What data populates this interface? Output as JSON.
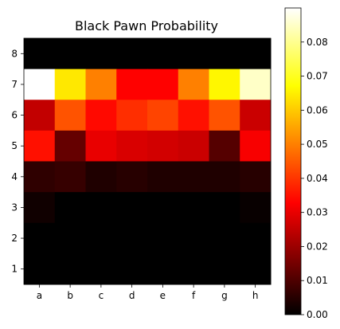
{
  "chart_data": {
    "type": "heatmap",
    "title": "Black Pawn Probability",
    "x_categories": [
      "a",
      "b",
      "c",
      "d",
      "e",
      "f",
      "g",
      "h"
    ],
    "y_categories": [
      "8",
      "7",
      "6",
      "5",
      "4",
      "3",
      "2",
      "1"
    ],
    "values": [
      [
        0.0,
        0.0,
        0.0,
        0.0,
        0.0,
        0.0,
        0.0,
        0.0
      ],
      [
        0.09,
        0.064,
        0.05,
        0.033,
        0.033,
        0.05,
        0.066,
        0.085
      ],
      [
        0.025,
        0.044,
        0.034,
        0.039,
        0.042,
        0.035,
        0.044,
        0.026
      ],
      [
        0.035,
        0.013,
        0.03,
        0.028,
        0.027,
        0.026,
        0.011,
        0.032
      ],
      [
        0.006,
        0.007,
        0.004,
        0.005,
        0.004,
        0.004,
        0.004,
        0.005
      ],
      [
        0.002,
        0.0,
        0.0,
        0.0,
        0.0,
        0.0,
        0.0,
        0.001
      ],
      [
        0.0,
        0.0,
        0.0,
        0.0,
        0.0,
        0.0,
        0.0,
        0.0
      ],
      [
        0.0,
        0.0,
        0.0,
        0.0,
        0.0,
        0.0,
        0.0,
        0.0
      ]
    ],
    "vmin": 0.0,
    "vmax": 0.09,
    "colormap": "hot",
    "colorbar": {
      "ticks": [
        0.0,
        0.01,
        0.02,
        0.03,
        0.04,
        0.05,
        0.06,
        0.07,
        0.08
      ],
      "tick_labels": [
        "0.00",
        "0.01",
        "0.02",
        "0.03",
        "0.04",
        "0.05",
        "0.06",
        "0.07",
        "0.08"
      ]
    },
    "xlabel": "",
    "ylabel": "",
    "grid": false
  }
}
